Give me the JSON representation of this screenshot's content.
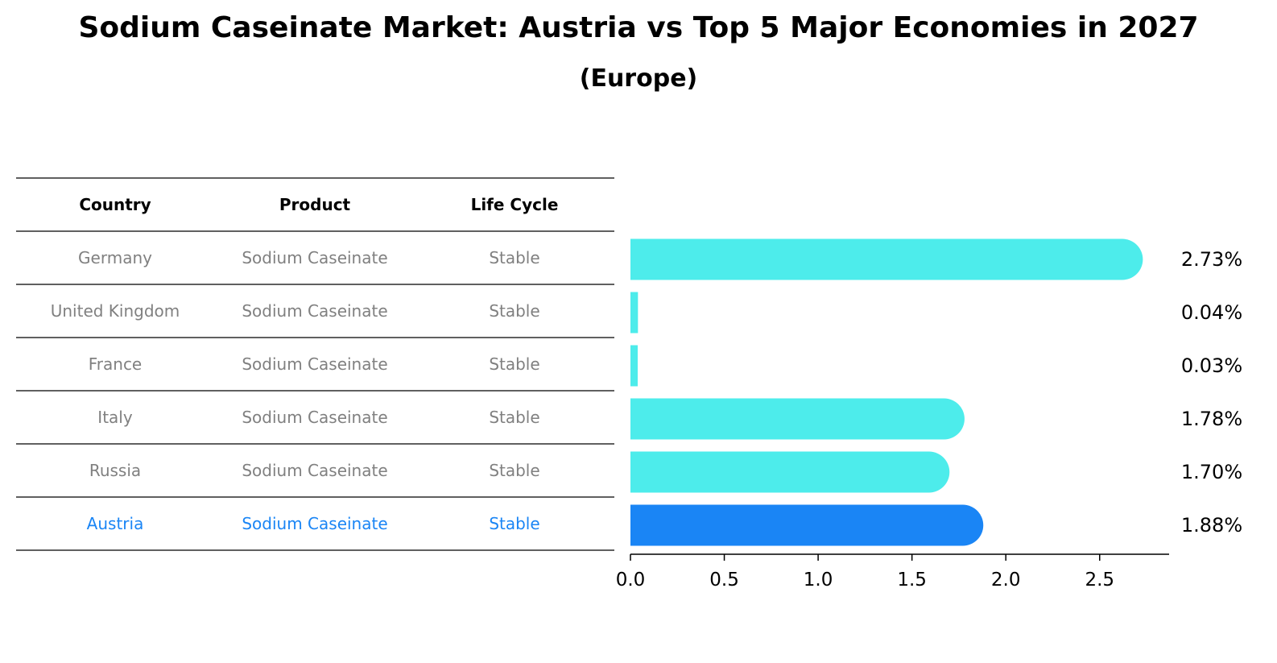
{
  "title": "Sodium Caseinate Market: Austria vs Top 5 Major Economies in 2027",
  "subtitle": "(Europe)",
  "table": {
    "columns": [
      "Country",
      "Product",
      "Life Cycle"
    ],
    "rows": [
      {
        "country": "Germany",
        "product": "Sodium Caseinate",
        "life_cycle": "Stable",
        "highlight": false
      },
      {
        "country": "United Kingdom",
        "product": "Sodium Caseinate",
        "life_cycle": "Stable",
        "highlight": false
      },
      {
        "country": "France",
        "product": "Sodium Caseinate",
        "life_cycle": "Stable",
        "highlight": false
      },
      {
        "country": "Italy",
        "product": "Sodium Caseinate",
        "life_cycle": "Stable",
        "highlight": false
      },
      {
        "country": "Russia",
        "product": "Sodium Caseinate",
        "life_cycle": "Stable",
        "highlight": false
      },
      {
        "country": "Austria",
        "product": "Sodium Caseinate",
        "life_cycle": "Stable",
        "highlight": true
      }
    ]
  },
  "chart_data": {
    "type": "bar",
    "orientation": "horizontal",
    "categories": [
      "Germany",
      "United Kingdom",
      "France",
      "Italy",
      "Russia",
      "Austria"
    ],
    "values": [
      2.73,
      0.04,
      0.03,
      1.78,
      1.7,
      1.88
    ],
    "value_labels": [
      "2.73%",
      "0.04%",
      "0.03%",
      "1.78%",
      "1.70%",
      "1.88%"
    ],
    "xlim": [
      0,
      2.87
    ],
    "xticks": [
      0.0,
      0.5,
      1.0,
      1.5,
      2.0,
      2.5
    ],
    "xtick_labels": [
      "0.0",
      "0.5",
      "1.0",
      "1.5",
      "2.0",
      "2.5"
    ],
    "xlabel": "",
    "ylabel": "",
    "grid": false,
    "legend": "none",
    "highlight_category": "Austria"
  },
  "colors": {
    "bar": "#4deceb",
    "highlight_bar": "#1a85f5",
    "highlight_text": "#1a85f5",
    "table_text": "#808080",
    "header_text": "#000000",
    "rule": "#000000"
  }
}
